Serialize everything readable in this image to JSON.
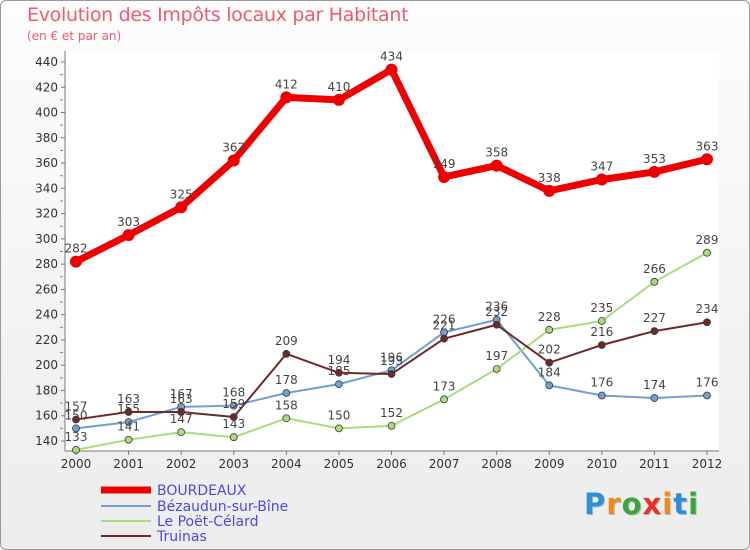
{
  "header": {
    "title": "Evolution des Impôts locaux par Habitant",
    "subtitle": "(en € et par an)"
  },
  "logo": {
    "text": "Proxiti"
  },
  "chart_data": {
    "type": "line",
    "title": "Evolution des Impôts locaux par Habitant",
    "subtitle": "(en € et par an)",
    "x": [
      "2000",
      "2001",
      "2002",
      "2003",
      "2004",
      "2005",
      "2006",
      "2007",
      "2008",
      "2009",
      "2010",
      "2011",
      "2012"
    ],
    "ylim": [
      130,
      440
    ],
    "yticks": [
      140,
      160,
      180,
      200,
      220,
      240,
      260,
      280,
      300,
      320,
      340,
      360,
      380,
      400,
      420,
      440
    ],
    "grid": false,
    "legend": "bottom-left",
    "series": [
      {
        "name": "BOURDEAUX",
        "color": "#ee0000",
        "values": [
          282,
          303,
          325,
          362,
          412,
          410,
          434,
          349,
          358,
          338,
          347,
          353,
          363
        ]
      },
      {
        "name": "Bézaudun-sur-Bîne",
        "color": "#6fa0d0",
        "values": [
          150,
          155,
          167,
          168,
          178,
          185,
          196,
          226,
          236,
          184,
          176,
          174,
          176
        ]
      },
      {
        "name": "Le Poët-Célard",
        "color": "#a9dd7c",
        "values": [
          133,
          141,
          147,
          143,
          158,
          150,
          152,
          173,
          197,
          228,
          235,
          266,
          289
        ]
      },
      {
        "name": "Truinas",
        "color": "#6e2a2a",
        "values": [
          157,
          163,
          163,
          159,
          209,
          194,
          193,
          221,
          232,
          202,
          216,
          227,
          234
        ]
      }
    ]
  }
}
